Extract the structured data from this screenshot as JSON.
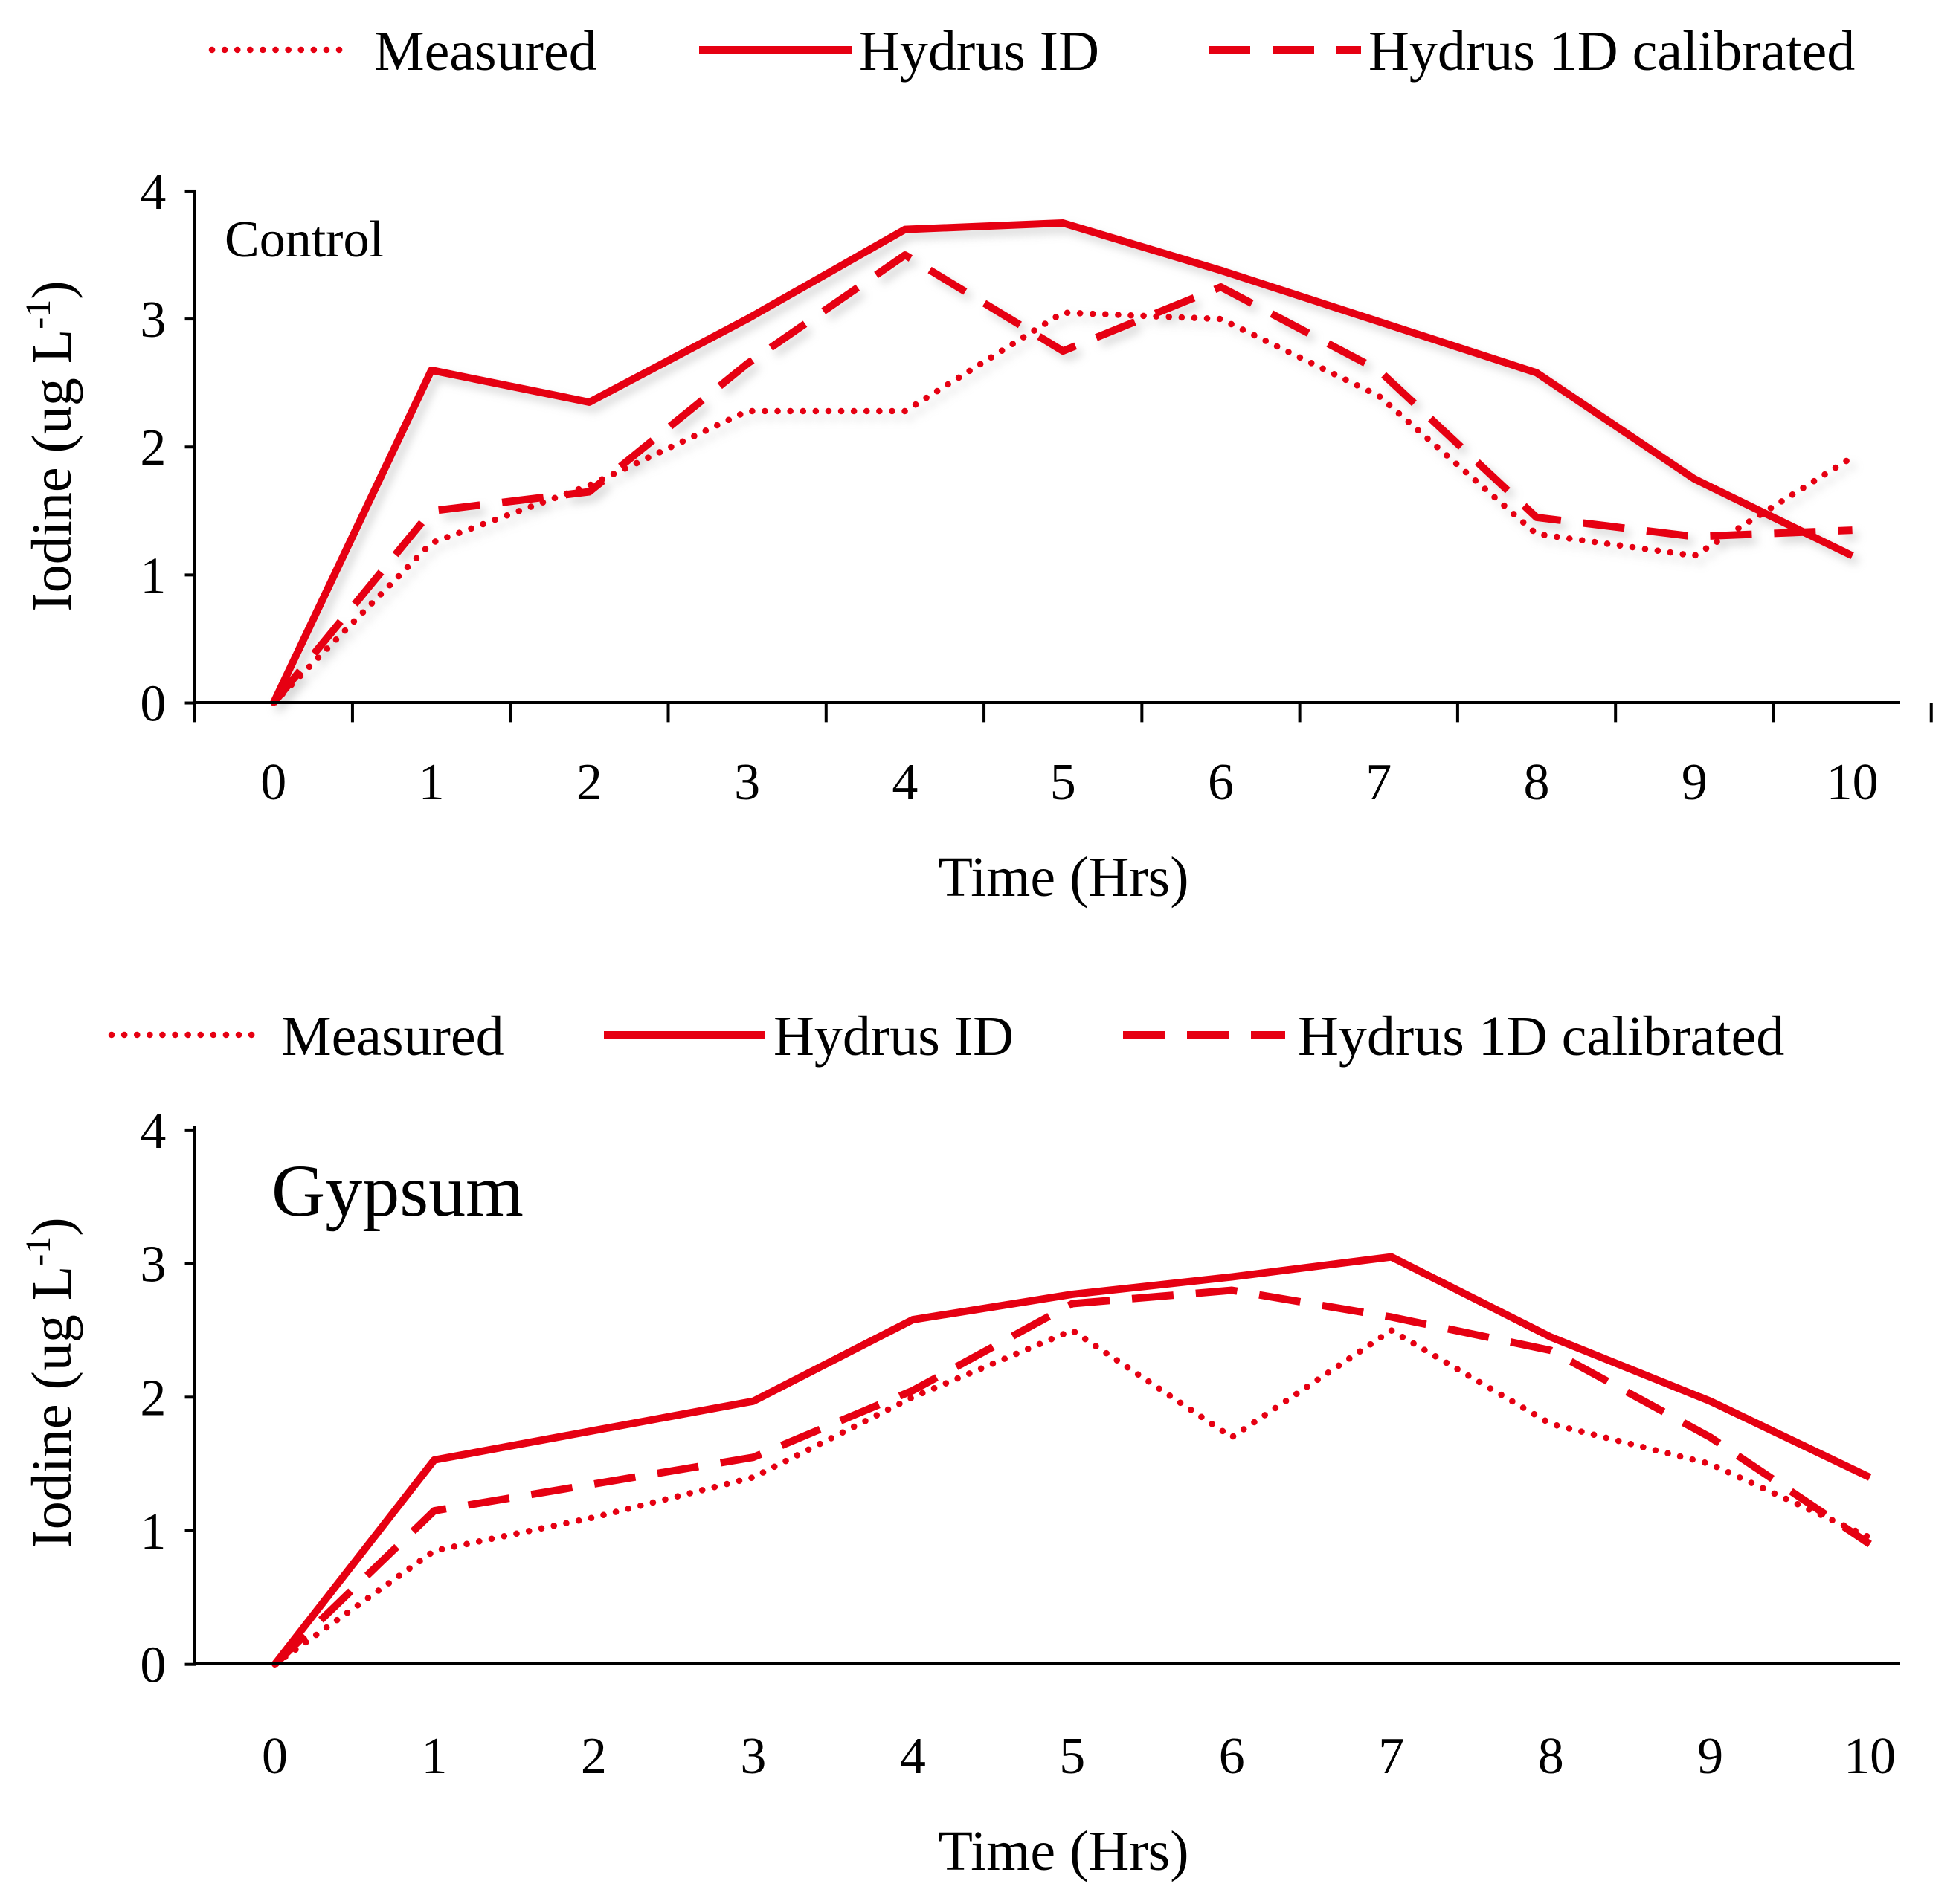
{
  "colors": {
    "series": "#e60012",
    "axis": "#000000",
    "shadow": "#b4b4b4"
  },
  "chart_data": [
    {
      "type": "line",
      "panel_label": "Control",
      "xlabel": "Time (Hrs)",
      "ylabel": "Iodine (ug L",
      "ylabel_sup": "-1",
      "ylabel_close": ")",
      "x": [
        0,
        1,
        2,
        3,
        4,
        5,
        6,
        7,
        8,
        9,
        10
      ],
      "x_tick_labels": [
        "0",
        "1",
        "2",
        "3",
        "4",
        "5",
        "6",
        "7",
        "8",
        "9",
        "10"
      ],
      "y_ticks": [
        0,
        1,
        2,
        3,
        4
      ],
      "y_tick_labels": [
        "0",
        "1",
        "2",
        "3",
        "4"
      ],
      "ylim": [
        0,
        4
      ],
      "legend": [
        {
          "name": "Measured",
          "style": "dotted"
        },
        {
          "name": "Hydrus ID",
          "style": "solid"
        },
        {
          "name": "Hydrus 1D calibrated",
          "style": "dashed"
        }
      ],
      "series": [
        {
          "name": "Measured",
          "style": "dotted",
          "values": [
            0,
            1.25,
            1.7,
            2.28,
            2.28,
            3.05,
            3.0,
            2.4,
            1.32,
            1.15,
            1.92
          ]
        },
        {
          "name": "Hydrus ID",
          "style": "solid",
          "values": [
            0,
            2.6,
            2.35,
            3.0,
            3.7,
            3.75,
            3.38,
            2.98,
            2.58,
            1.75,
            1.15
          ]
        },
        {
          "name": "Hydrus 1D calibrated",
          "style": "dashed",
          "values": [
            0,
            1.5,
            1.65,
            2.65,
            3.5,
            2.75,
            3.25,
            2.6,
            1.45,
            1.3,
            1.35
          ]
        }
      ]
    },
    {
      "type": "line",
      "panel_label": "Gypsum",
      "xlabel": "Time (Hrs)",
      "ylabel": "Iodine (ug L",
      "ylabel_sup": "-1",
      "ylabel_close": ")",
      "x": [
        0,
        1,
        2,
        3,
        4,
        5,
        6,
        7,
        8,
        9,
        10
      ],
      "x_tick_labels": [
        "0",
        "1",
        "2",
        "3",
        "4",
        "5",
        "6",
        "7",
        "8",
        "9",
        "10"
      ],
      "y_ticks": [
        0,
        1,
        2,
        3,
        4
      ],
      "y_tick_labels": [
        "0",
        "1",
        "2",
        "3",
        "4"
      ],
      "ylim": [
        0,
        4
      ],
      "legend": [
        {
          "name": "Measured",
          "style": "dotted"
        },
        {
          "name": "Hydrus ID",
          "style": "solid"
        },
        {
          "name": "Hydrus 1D calibrated",
          "style": "dashed"
        }
      ],
      "series": [
        {
          "name": "Measured",
          "style": "dotted",
          "values": [
            0,
            0.85,
            1.1,
            1.4,
            2.0,
            2.5,
            1.7,
            2.5,
            1.8,
            1.5,
            0.95
          ]
        },
        {
          "name": "Hydrus ID",
          "style": "solid",
          "values": [
            0,
            1.53,
            1.75,
            1.97,
            2.58,
            2.77,
            2.9,
            3.05,
            2.45,
            1.97,
            1.4
          ]
        },
        {
          "name": "Hydrus 1D calibrated",
          "style": "dashed",
          "values": [
            0,
            1.15,
            1.35,
            1.55,
            2.05,
            2.7,
            2.8,
            2.6,
            2.35,
            1.7,
            0.9
          ]
        }
      ]
    }
  ]
}
